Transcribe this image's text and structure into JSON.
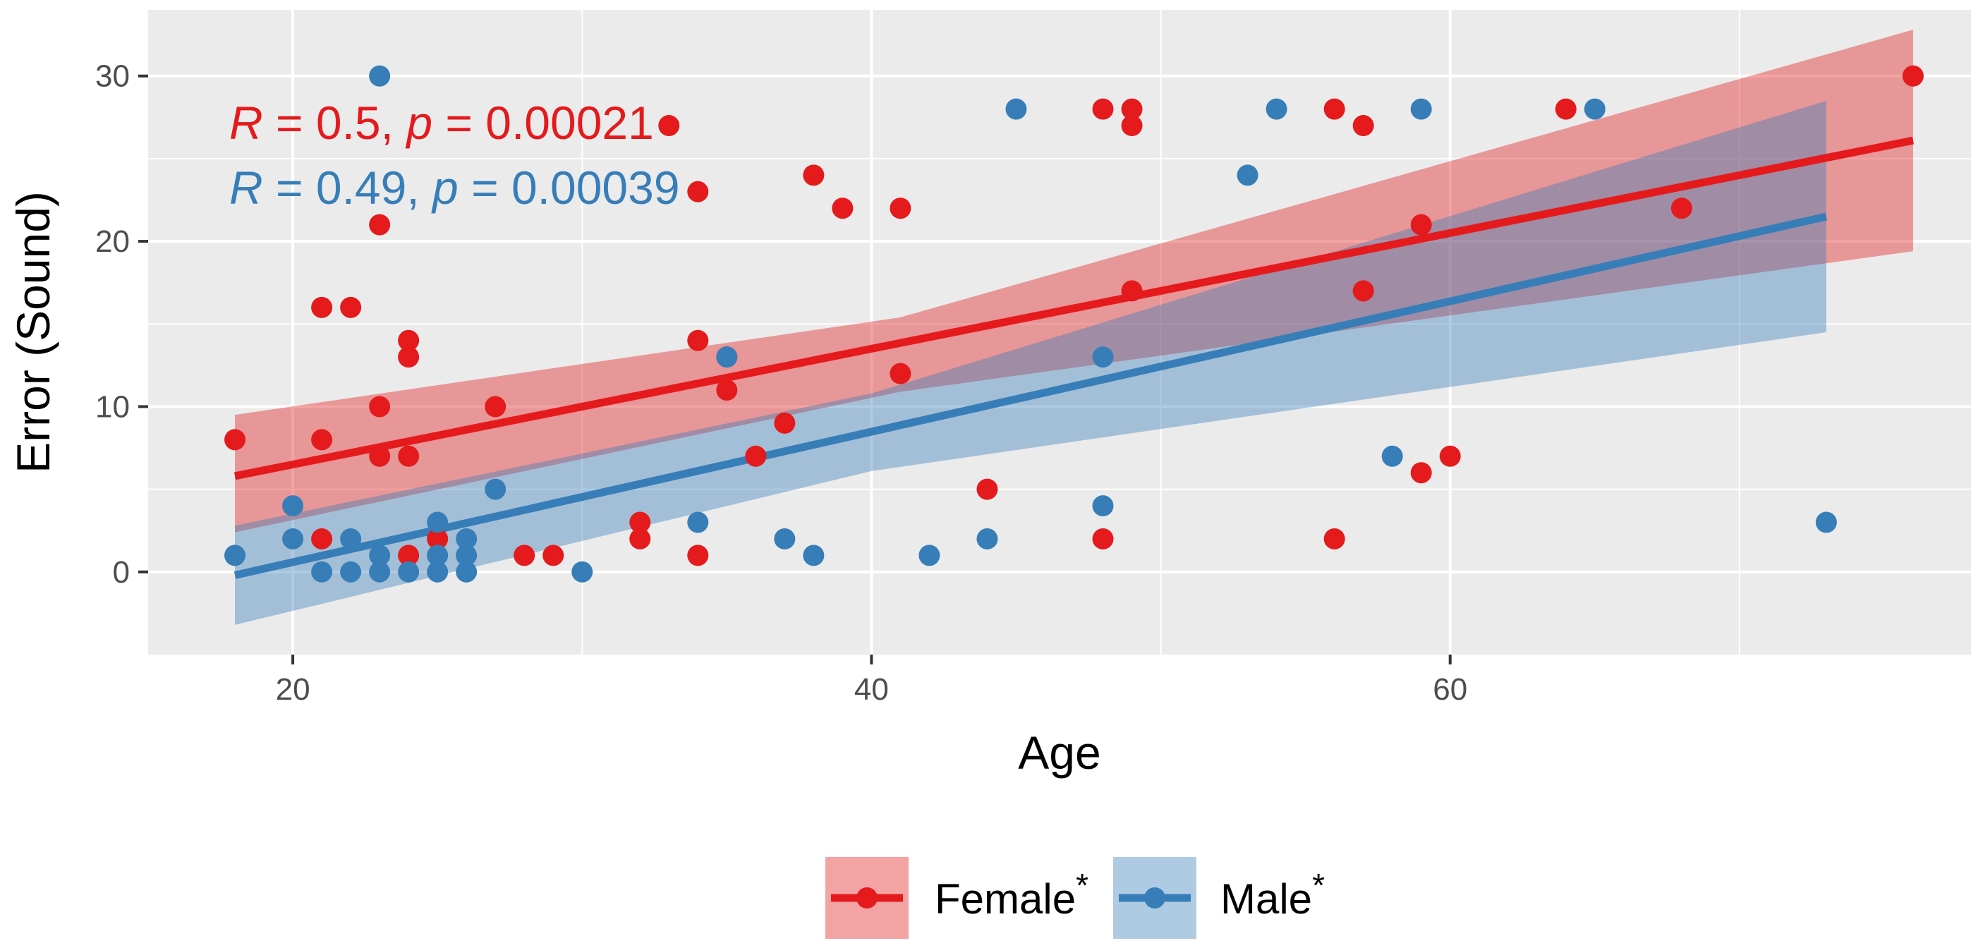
{
  "chart_data": {
    "type": "scatter",
    "xlabel": "Age",
    "ylabel": "Error (Sound)",
    "xlim": [
      15,
      78
    ],
    "ylim": [
      -5,
      34
    ],
    "xticks": [
      20,
      40,
      60
    ],
    "yticks": [
      0,
      10,
      20,
      30
    ],
    "grid": true,
    "legend_position": "bottom",
    "stats": [
      {
        "series": "Female",
        "r_label": "R",
        "r_text": " = 0.5, ",
        "p_label": "p",
        "p_text": " = 0.00021"
      },
      {
        "series": "Male",
        "r_label": "R",
        "r_text": " = 0.49, ",
        "p_label": "p",
        "p_text": " = 0.00039"
      }
    ],
    "series": [
      {
        "name": "Female",
        "legend_label": "Female",
        "legend_mark": "*",
        "color": "#e41a1c",
        "band_color": "#e41a1c",
        "points": [
          [
            18,
            8
          ],
          [
            21,
            16
          ],
          [
            21,
            8
          ],
          [
            21,
            2
          ],
          [
            22,
            16
          ],
          [
            23,
            21
          ],
          [
            23,
            10
          ],
          [
            23,
            7
          ],
          [
            24,
            14
          ],
          [
            24,
            13
          ],
          [
            24,
            7
          ],
          [
            24,
            1
          ],
          [
            25,
            2
          ],
          [
            27,
            10
          ],
          [
            28,
            1
          ],
          [
            29,
            1
          ],
          [
            32,
            3
          ],
          [
            32,
            2
          ],
          [
            33,
            27
          ],
          [
            34,
            23
          ],
          [
            34,
            14
          ],
          [
            34,
            1
          ],
          [
            35,
            13
          ],
          [
            35,
            11
          ],
          [
            36,
            7
          ],
          [
            37,
            9
          ],
          [
            38,
            24
          ],
          [
            39,
            22
          ],
          [
            41,
            22
          ],
          [
            41,
            12
          ],
          [
            44,
            5
          ],
          [
            48,
            28
          ],
          [
            48,
            2
          ],
          [
            49,
            28
          ],
          [
            49,
            27
          ],
          [
            49,
            17
          ],
          [
            56,
            28
          ],
          [
            56,
            2
          ],
          [
            57,
            27
          ],
          [
            57,
            17
          ],
          [
            59,
            21
          ],
          [
            59,
            6
          ],
          [
            60,
            7
          ],
          [
            64,
            28
          ],
          [
            68,
            22
          ],
          [
            76,
            30
          ]
        ],
        "fit": {
          "x": [
            18,
            76
          ],
          "y": [
            5.8,
            26.1
          ]
        },
        "band": {
          "x": [
            18,
            41,
            76
          ],
          "lower": [
            2.4,
            10.9,
            19.4
          ],
          "upper": [
            9.5,
            15.4,
            32.8
          ]
        }
      },
      {
        "name": "Male",
        "legend_label": "Male",
        "legend_mark": "*",
        "color": "#377eb8",
        "band_color": "#377eb8",
        "points": [
          [
            18,
            1
          ],
          [
            20,
            4
          ],
          [
            20,
            2
          ],
          [
            21,
            0
          ],
          [
            22,
            2
          ],
          [
            22,
            0
          ],
          [
            23,
            30
          ],
          [
            23,
            1
          ],
          [
            23,
            0
          ],
          [
            24,
            0
          ],
          [
            25,
            3
          ],
          [
            25,
            1
          ],
          [
            25,
            0
          ],
          [
            26,
            2
          ],
          [
            26,
            1
          ],
          [
            26,
            0
          ],
          [
            27,
            5
          ],
          [
            30,
            0
          ],
          [
            34,
            3
          ],
          [
            35,
            13
          ],
          [
            37,
            2
          ],
          [
            38,
            1
          ],
          [
            42,
            1
          ],
          [
            44,
            2
          ],
          [
            45,
            28
          ],
          [
            48,
            13
          ],
          [
            48,
            4
          ],
          [
            53,
            24
          ],
          [
            54,
            28
          ],
          [
            58,
            7
          ],
          [
            59,
            28
          ],
          [
            65,
            28
          ],
          [
            73,
            3
          ]
        ],
        "fit": {
          "x": [
            18,
            73
          ],
          "y": [
            -0.2,
            21.5
          ]
        },
        "band": {
          "x": [
            18,
            40,
            73
          ],
          "lower": [
            -3.2,
            6.1,
            14.5
          ],
          "upper": [
            2.8,
            10.8,
            28.5
          ]
        }
      }
    ]
  }
}
